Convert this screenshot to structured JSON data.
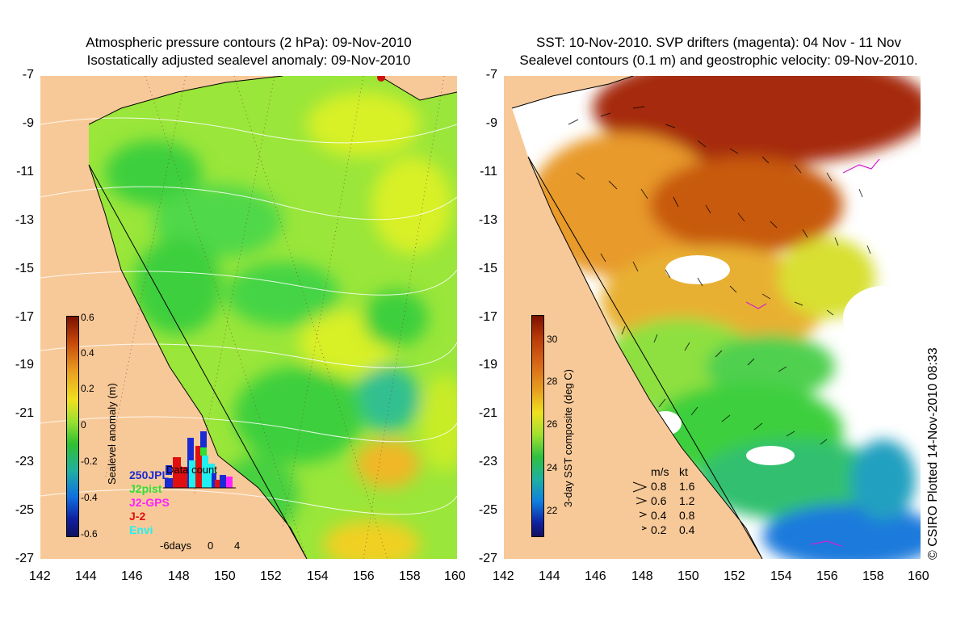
{
  "left_panel": {
    "title_line1": "Atmospheric pressure contours (2 hPa): 09-Nov-2010",
    "title_line2": "Isostatically adjusted sealevel anomaly: 09-Nov-2010",
    "colorbar": {
      "label": "Sealevel anomaly (m)",
      "ticks": [
        "0.6",
        "0.4",
        "0.2",
        "0",
        "-0.2",
        "-0.4",
        "-0.6"
      ]
    },
    "data_count": {
      "title": "Data count",
      "missions": [
        "250JPL",
        "J2pist",
        "J2-GPS",
        "J-2",
        "Envi"
      ],
      "mission_colors": [
        "#1a2bd4",
        "#2fe02f",
        "#ff22ff",
        "#e01010",
        "#20f0f0"
      ],
      "axis_labels": [
        "-6days",
        "0",
        "4"
      ]
    }
  },
  "right_panel": {
    "title_line1": "SST: 10-Nov-2010. SVP drifters (magenta): 04 Nov - 11 Nov",
    "title_line2": "Sealevel contours (0.1 m) and geostrophic velocity: 09-Nov-2010.",
    "colorbar": {
      "label": "3-day SST composite (deg C)",
      "ticks": [
        "30",
        "28",
        "26",
        "24",
        "22"
      ]
    },
    "velocity_legend": {
      "header_ms": "m/s",
      "header_kt": "kt",
      "rows": [
        {
          "ms": "0.8",
          "kt": "1.6"
        },
        {
          "ms": "0.6",
          "kt": "1.2"
        },
        {
          "ms": "0.4",
          "kt": "0.8"
        },
        {
          "ms": "0.2",
          "kt": "0.4"
        }
      ]
    }
  },
  "axes": {
    "lat_ticks": [
      "-7",
      "-9",
      "-11",
      "-13",
      "-15",
      "-17",
      "-19",
      "-21",
      "-23",
      "-25",
      "-27"
    ],
    "lon_ticks": [
      "142",
      "144",
      "146",
      "148",
      "150",
      "152",
      "154",
      "156",
      "158",
      "160"
    ]
  },
  "colors": {
    "land": "#f8c998",
    "anomaly_green": "#3ccf3c",
    "anomaly_yellow": "#d8f028",
    "sst_red": "#b83a08",
    "sst_orange": "#e89a2a",
    "sst_blue": "#1e7adc"
  },
  "copyright": "© CSIRO Plotted 14-Nov-2010 08:33"
}
